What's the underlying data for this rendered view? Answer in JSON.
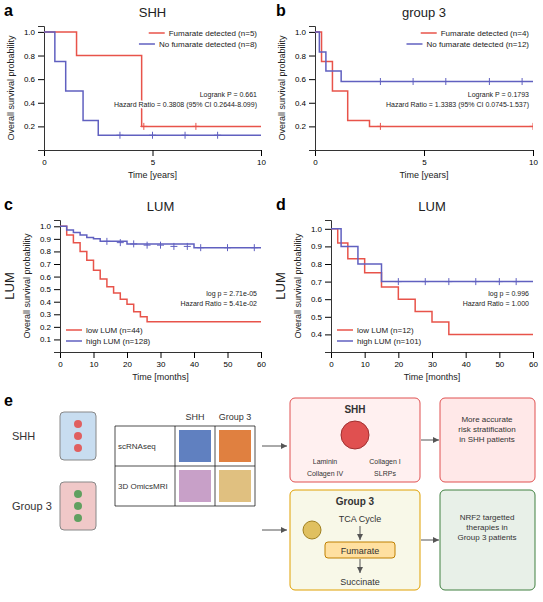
{
  "chart_data": [
    {
      "type": "line",
      "line_style": "step",
      "title": "SHH",
      "annotations": [
        "a",
        "Logrank P = 0.661",
        "Hazard Ratio = 0.3808 (95% CI 0.2644-8.099)"
      ],
      "xlabel": "Time [years]",
      "ylabel": "Overall survival probability",
      "xlim": [
        0,
        10
      ],
      "xticks": [
        0,
        5,
        10
      ],
      "ylim": [
        0,
        1.05
      ],
      "yticks": [
        0.2,
        0.4,
        0.6,
        0.8,
        {
          "value": 1.0,
          "label": "1.0"
        }
      ],
      "legend": "upper right",
      "series": [
        {
          "name": "Fumarate detected (n=5)",
          "color": "#e8534a",
          "marker": "plus",
          "x": [
            0,
            1.5,
            1.5,
            4.5,
            4.5,
            10
          ],
          "values": [
            1.0,
            1.0,
            0.8,
            0.8,
            0.2,
            0.2
          ],
          "censor_x": [
            4.6,
            7.0
          ],
          "censor_values": [
            0.2,
            0.2
          ]
        },
        {
          "name": "No fumarate detected (n=8)",
          "color": "#6060c0",
          "marker": "plus",
          "x": [
            0,
            0.5,
            0.5,
            1.0,
            1.0,
            1.8,
            1.8,
            2.5,
            2.5,
            10
          ],
          "values": [
            1.0,
            1.0,
            0.75,
            0.75,
            0.5,
            0.5,
            0.25,
            0.25,
            0.125,
            0.125
          ],
          "censor_x": [
            3.5,
            5.0,
            6.5,
            8.0
          ],
          "censor_values": [
            0.125,
            0.125,
            0.125,
            0.125
          ]
        }
      ]
    },
    {
      "type": "line",
      "line_style": "step",
      "title": "group 3",
      "annotations": [
        "b",
        "Logrank P = 0.1793",
        "Hazard Ratio = 1.3383 (95% CI 0.0745-1.537)"
      ],
      "xlabel": "Time [years]",
      "ylabel": "Overall survival probability",
      "xlim": [
        0,
        10
      ],
      "xticks": [
        0,
        5,
        10
      ],
      "ylim": [
        0,
        1.05
      ],
      "yticks": [
        0.2,
        0.4,
        0.6,
        0.8,
        {
          "value": 1.0,
          "label": "1.0"
        }
      ],
      "legend": "upper right",
      "series": [
        {
          "name": "Fumarate detected (n=4)",
          "color": "#e8534a",
          "marker": "plus",
          "x": [
            0,
            0.3,
            0.3,
            0.8,
            0.8,
            1.5,
            1.5,
            2.5,
            2.5,
            10
          ],
          "values": [
            1.0,
            1.0,
            0.75,
            0.75,
            0.5,
            0.5,
            0.25,
            0.25,
            0.2,
            0.2
          ],
          "censor_x": [
            3.0,
            10.0
          ],
          "censor_values": [
            0.2,
            0.2
          ]
        },
        {
          "name": "No fumarate detected (n=12)",
          "color": "#6060c0",
          "marker": "plus",
          "x": [
            0,
            0.2,
            0.2,
            0.5,
            0.5,
            1.2,
            1.2,
            10
          ],
          "values": [
            1.0,
            1.0,
            0.83,
            0.83,
            0.67,
            0.67,
            0.58,
            0.58
          ],
          "censor_x": [
            3.0,
            4.5,
            6.0,
            8.0,
            9.5
          ],
          "censor_values": [
            0.58,
            0.58,
            0.58,
            0.58,
            0.58
          ]
        }
      ]
    },
    {
      "type": "line",
      "line_style": "step",
      "title": "LUM",
      "annotations": [
        "c",
        "LUM",
        "log p = 2.71e-05",
        "Hazard Ratio = 5.41e-02"
      ],
      "xlabel": "Time [months]",
      "ylabel": "Overall survival probability",
      "xlim": [
        0,
        60
      ],
      "xticks": [
        0,
        10,
        20,
        30,
        40,
        50,
        60
      ],
      "ylim": [
        0,
        1.05
      ],
      "yticks": [
        0.1,
        0.2,
        0.3,
        0.4,
        0.5,
        0.6,
        0.7,
        0.8,
        0.9,
        {
          "value": 1.0,
          "label": "1.0"
        }
      ],
      "legend": "lower left",
      "series": [
        {
          "name": "low LUM (n=44)",
          "color": "#e8534a",
          "x": [
            0,
            2,
            2,
            4,
            4,
            6,
            6,
            8,
            8,
            10,
            10,
            12,
            12,
            14,
            14,
            16,
            16,
            18,
            18,
            20,
            20,
            22,
            22,
            24,
            24,
            26,
            26,
            28,
            28,
            30,
            30,
            32,
            32,
            60
          ],
          "values": [
            1.0,
            1.0,
            0.93,
            0.93,
            0.87,
            0.87,
            0.8,
            0.8,
            0.73,
            0.73,
            0.65,
            0.65,
            0.58,
            0.58,
            0.52,
            0.52,
            0.47,
            0.47,
            0.42,
            0.42,
            0.38,
            0.38,
            0.32,
            0.32,
            0.28,
            0.28,
            0.24,
            0.24,
            0.24,
            0.24,
            0.24,
            0.24,
            0.24,
            0.24
          ]
        },
        {
          "name": "high LUM (n=128)",
          "color": "#6060c0",
          "marker": "plus",
          "x": [
            0,
            2,
            2,
            4,
            4,
            6,
            6,
            8,
            8,
            10,
            10,
            12,
            12,
            20,
            20,
            40,
            40,
            60
          ],
          "values": [
            1.0,
            1.0,
            0.97,
            0.97,
            0.95,
            0.95,
            0.93,
            0.93,
            0.91,
            0.91,
            0.9,
            0.9,
            0.88,
            0.88,
            0.86,
            0.86,
            0.83,
            0.83
          ],
          "censor_x": [
            14,
            18,
            22,
            26,
            30,
            34,
            38,
            42,
            50,
            58
          ],
          "censor_values": [
            0.88,
            0.87,
            0.86,
            0.85,
            0.85,
            0.84,
            0.84,
            0.83,
            0.83,
            0.83
          ]
        }
      ]
    },
    {
      "type": "line",
      "line_style": "step",
      "title": "LUM",
      "annotations": [
        "d",
        "LUM",
        "log p = 0.996",
        "Hazard Ratio = 1.000"
      ],
      "xlabel": "Time [months]",
      "ylabel": "Overall survival probability",
      "xlim": [
        0,
        60
      ],
      "xticks": [
        0,
        10,
        20,
        30,
        40,
        50,
        60
      ],
      "ylim": [
        0.3,
        1.05
      ],
      "yticks": [
        0.4,
        0.5,
        0.6,
        0.7,
        0.8,
        0.9,
        {
          "value": 1.0,
          "label": "1.0"
        }
      ],
      "legend": "lower left",
      "series": [
        {
          "name": "low LUM (n=12)",
          "color": "#e8534a",
          "x": [
            0,
            2,
            2,
            5,
            5,
            10,
            10,
            15,
            15,
            20,
            20,
            25,
            25,
            30,
            30,
            35,
            35,
            40,
            40,
            45,
            45,
            60
          ],
          "values": [
            1.0,
            1.0,
            0.92,
            0.92,
            0.83,
            0.83,
            0.75,
            0.75,
            0.67,
            0.67,
            0.6,
            0.6,
            0.53,
            0.53,
            0.47,
            0.47,
            0.4,
            0.4,
            0.4,
            0.4,
            0.4,
            0.4
          ]
        },
        {
          "name": "high LUM (n=101)",
          "color": "#6060c0",
          "marker": "plus",
          "x": [
            0,
            3,
            3,
            8,
            8,
            15,
            15,
            60
          ],
          "values": [
            1.0,
            1.0,
            0.9,
            0.9,
            0.8,
            0.8,
            0.7,
            0.7
          ],
          "censor_x": [
            20,
            28,
            35,
            43,
            50,
            55
          ],
          "censor_values": [
            0.7,
            0.7,
            0.7,
            0.7,
            0.7,
            0.7
          ]
        }
      ]
    },
    {
      "type": "diagram",
      "annotations": [
        "e",
        "SHH",
        "Group 3",
        "SHH",
        "Group 3",
        "scRNAseq",
        "3D OmicsMRI",
        "SHH",
        "Laminin",
        "Collagen I",
        "Collagen IV",
        "SLRPs",
        "Group 3",
        "TCA Cycle",
        "Fumarate",
        "Succinate",
        "More accurate\nrisk stratification\nin SHH patients",
        "NRF2 targetted\ntherapies in\nGroup 3 patients"
      ]
    }
  ]
}
